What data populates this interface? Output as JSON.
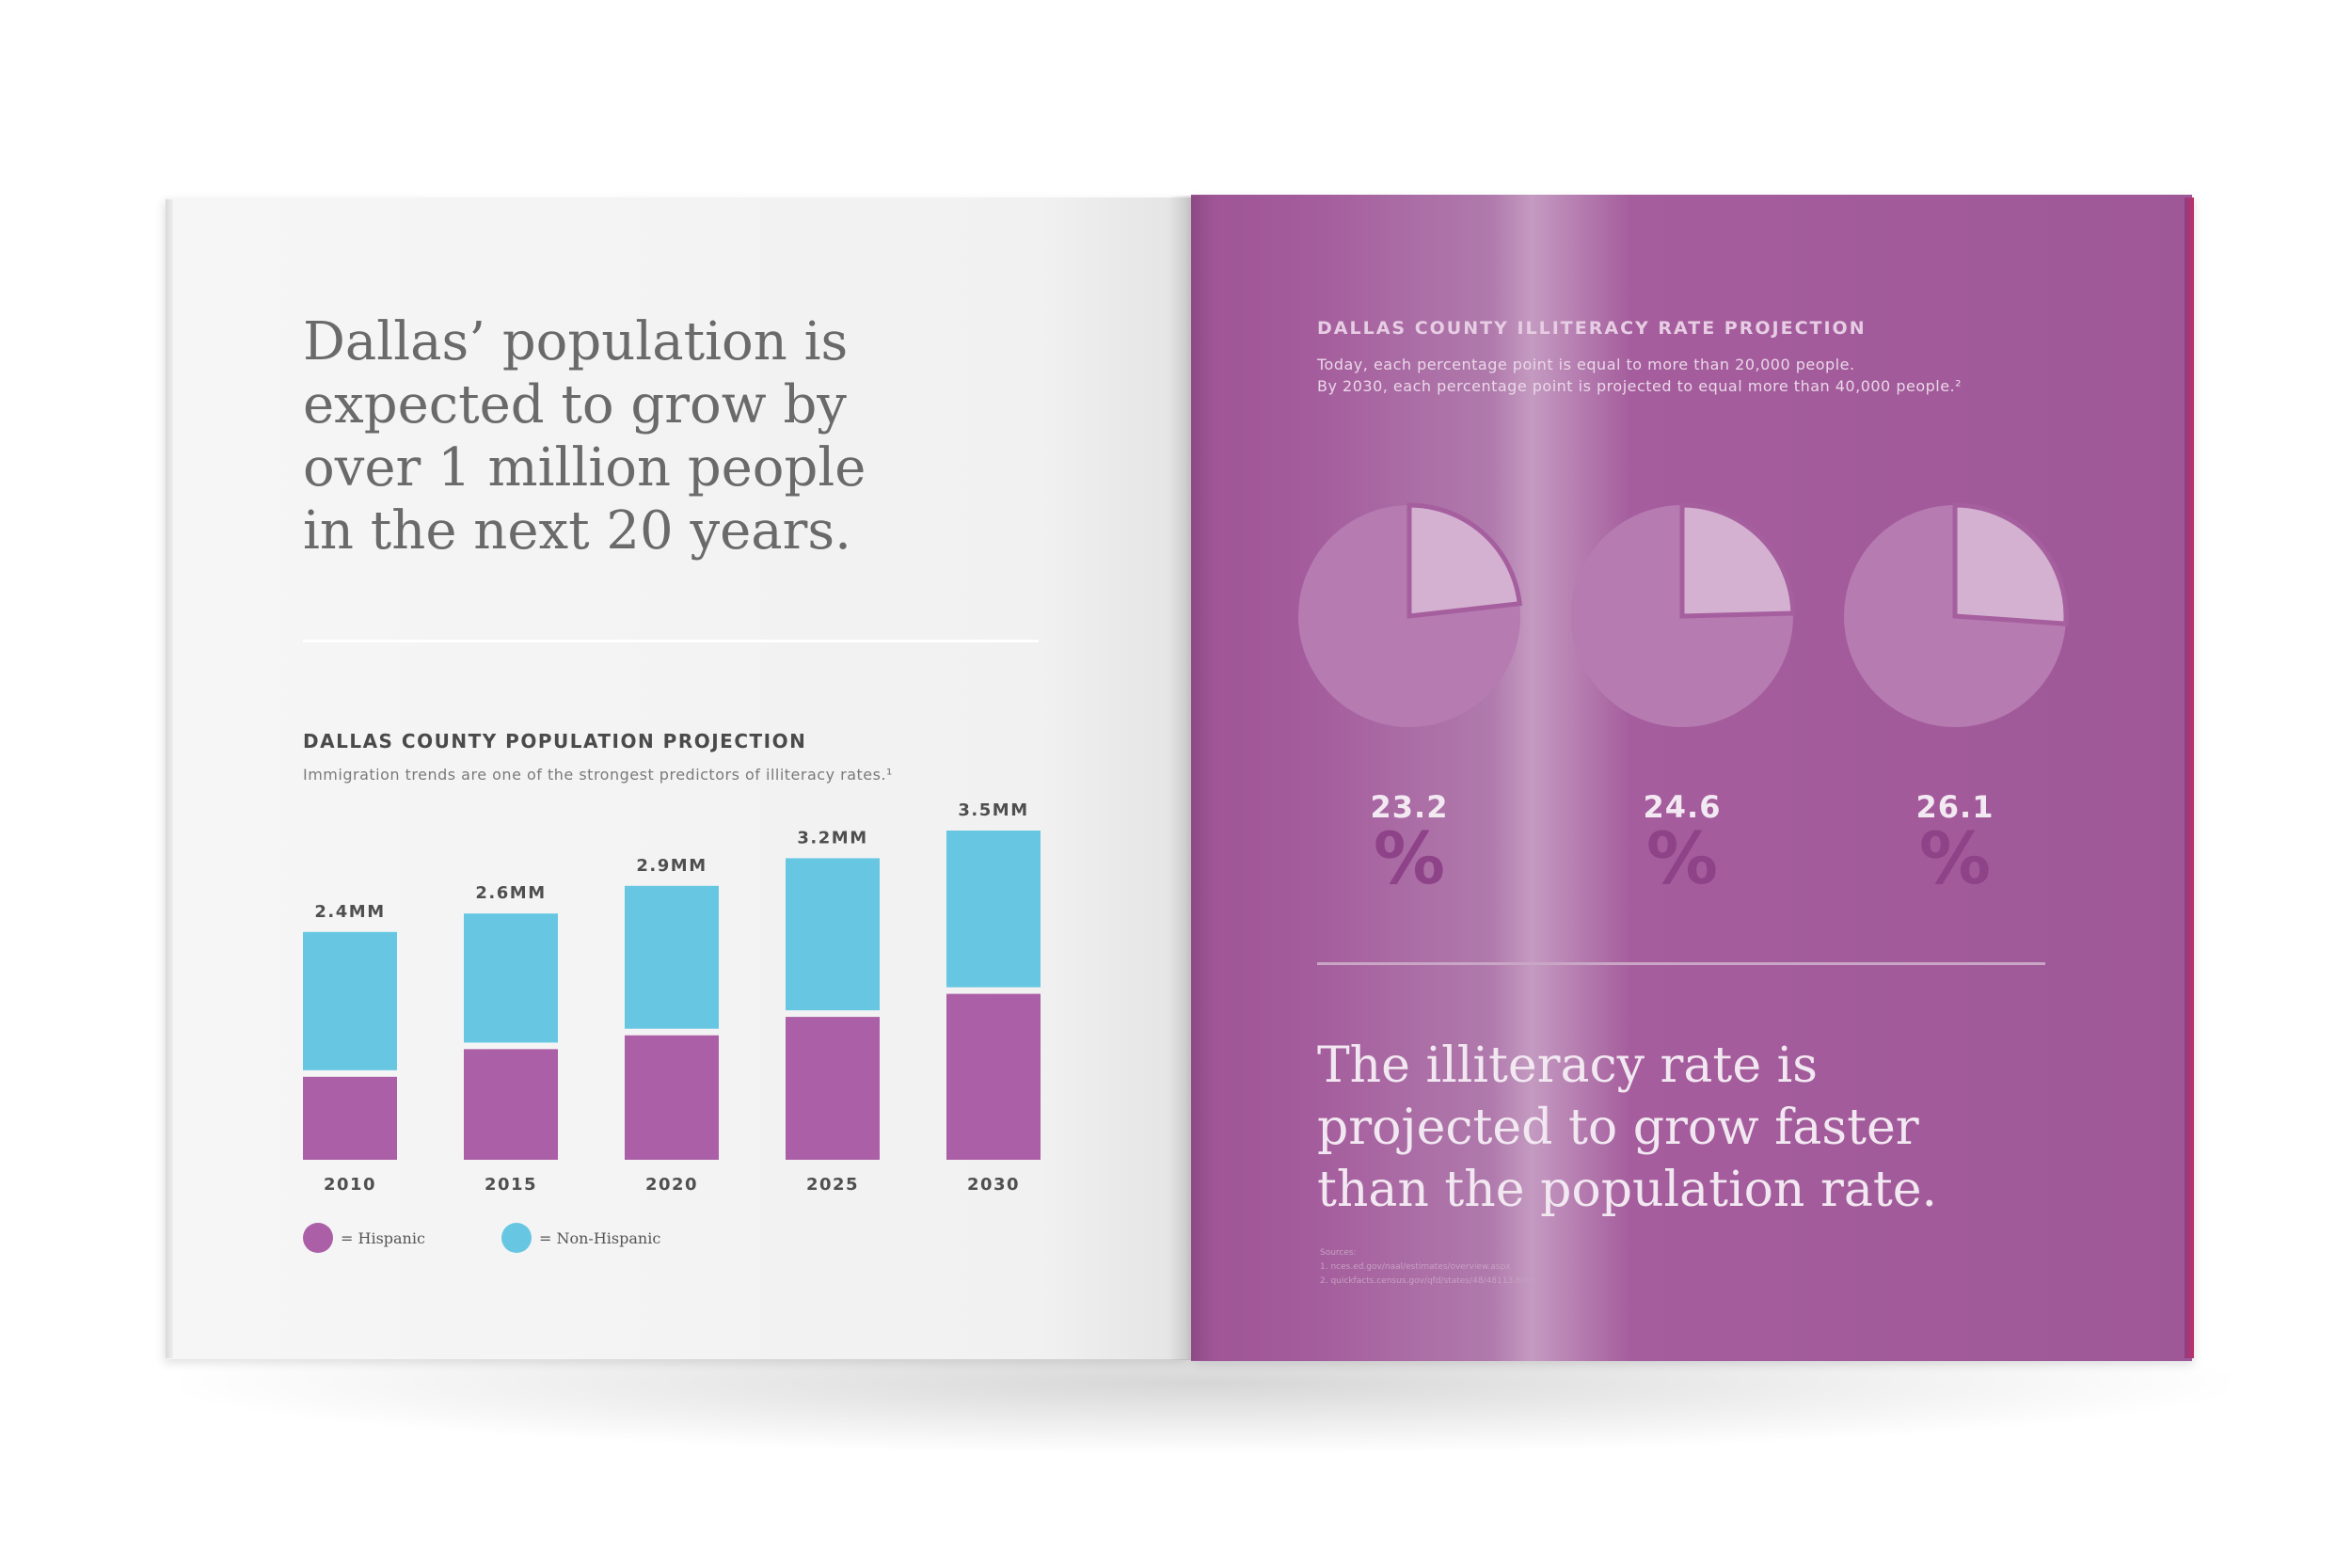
{
  "spread": {
    "left": {
      "headline": [
        "Dallas’ population is",
        "expected to grow by",
        "over 1 million people",
        "in the next 20 years."
      ],
      "colors": {
        "hispanic": "#ab5fa7",
        "non_hispanic": "#67c7e3",
        "text": "#6a6a6a"
      }
    },
    "right": {
      "headline": [
        "The illiteracy rate is",
        "projected to grow faster",
        "than the population rate."
      ],
      "sources": {
        "heading": "Sources:",
        "items": [
          "1. nces.ed.gov/naal/estimates/overview.aspx",
          "2. quickfacts.census.gov/qfd/states/48/48113.html"
        ]
      }
    }
  },
  "chart_data": [
    {
      "type": "bar",
      "stacked": true,
      "title": "DALLAS COUNTY POPULATION PROJECTION",
      "subtitle": "Immigration trends are one of the strongest predictors of illiteracy rates.¹",
      "categories": [
        "2010",
        "2015",
        "2020",
        "2025",
        "2030"
      ],
      "totals": [
        2.4,
        2.6,
        2.9,
        3.2,
        3.5
      ],
      "total_labels": [
        "2.4MM",
        "2.6MM",
        "2.9MM",
        "3.2MM",
        "3.5MM"
      ],
      "series": [
        {
          "name": "Hispanic",
          "values": [
            0.9,
            1.2,
            1.35,
            1.55,
            1.8
          ],
          "color": "#ab5fa7"
        },
        {
          "name": "Non-Hispanic",
          "values": [
            1.5,
            1.4,
            1.55,
            1.65,
            1.7
          ],
          "color": "#67c7e3"
        }
      ],
      "legend": [
        {
          "label": "= Hispanic",
          "color": "#ab5fa7"
        },
        {
          "label": "= Non-Hispanic",
          "color": "#67c7e3"
        }
      ],
      "ylim": [
        0,
        3.5
      ],
      "unit": "million people"
    },
    {
      "type": "pie",
      "title": "DALLAS COUNTY ILLITERACY RATE PROJECTION",
      "subtitle": [
        "Today, each percentage point is equal to more than 20,000 people.",
        "By 2030, each percentage point is projected to equal more than 40,000 people.²"
      ],
      "values": [
        23.2,
        24.6,
        26.1
      ],
      "labels": [
        "23.2",
        "24.6",
        "26.1"
      ],
      "unit_symbol": "%",
      "colors": {
        "slice": "#d4b1d1",
        "rest": "#b67bb1",
        "outline": "#a65f9e",
        "label": "#f3e9f2",
        "percent": "#8e4389"
      }
    }
  ]
}
